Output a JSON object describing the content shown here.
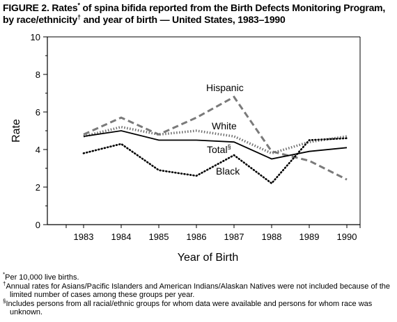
{
  "title": {
    "line1_a": "FIGURE 2. Rates",
    "line1_mark": "*",
    "line1_b": " of spina bifida reported from the Birth Defects Monitoring Program,",
    "line2_a": "by race/ethnicity",
    "line2_mark": "†",
    "line2_b": " and year of birth — United States, 1983–1990"
  },
  "chart_data": {
    "type": "line",
    "title": "",
    "xlabel": "Year of Birth",
    "ylabel": "Rate",
    "ylim": [
      0,
      10
    ],
    "yticks": [
      0,
      2,
      4,
      6,
      8,
      10
    ],
    "x": [
      1983,
      1984,
      1985,
      1986,
      1987,
      1988,
      1989,
      1990
    ],
    "grid": false,
    "legend": "inline labels",
    "series": [
      {
        "name": "Hispanic",
        "style": "dashed-gray",
        "values": [
          4.8,
          5.7,
          4.8,
          5.7,
          6.8,
          3.9,
          3.4,
          2.4
        ]
      },
      {
        "name": "White",
        "style": "dotted-thick",
        "values": [
          4.7,
          5.2,
          4.8,
          5.0,
          4.7,
          3.8,
          4.4,
          4.7
        ]
      },
      {
        "name": "Total",
        "name_mark": "§",
        "style": "solid",
        "values": [
          4.7,
          5.0,
          4.5,
          4.5,
          4.4,
          3.5,
          3.9,
          4.1
        ]
      },
      {
        "name": "Black",
        "style": "dotted",
        "values": [
          3.8,
          4.3,
          2.9,
          2.6,
          3.7,
          2.2,
          4.5,
          4.6
        ]
      }
    ]
  },
  "footnotes": [
    {
      "mark": "*",
      "text": "Per 10,000 live births."
    },
    {
      "mark": "†",
      "text": "Annual rates for Asians/Pacific Islanders and American Indians/Alaskan Natives were not included because of the limited number of cases among these groups per year."
    },
    {
      "mark": "§",
      "text": "Includes persons from all racial/ethnic groups for whom data were available and persons for whom race was unknown."
    }
  ]
}
